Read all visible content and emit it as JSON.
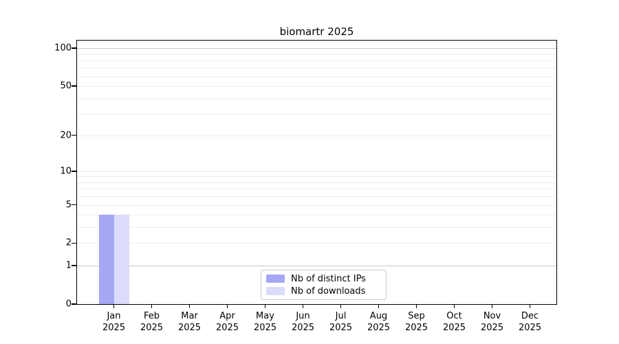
{
  "chart_data": {
    "type": "bar",
    "title": "biomartr 2025",
    "categories": [
      "Jan",
      "Feb",
      "Mar",
      "Apr",
      "May",
      "Jun",
      "Jul",
      "Aug",
      "Sep",
      "Oct",
      "Nov",
      "Dec"
    ],
    "category_year": "2025",
    "series": [
      {
        "name": "Nb of distinct IPs",
        "color": "#a6a7f4",
        "values": [
          4,
          0,
          0,
          0,
          0,
          0,
          0,
          0,
          0,
          0,
          0,
          0
        ]
      },
      {
        "name": "Nb of downloads",
        "color": "#dadcfa",
        "values": [
          4,
          0,
          0,
          0,
          0,
          0,
          0,
          0,
          0,
          0,
          0,
          0
        ]
      }
    ],
    "yscale": "log1p",
    "ylim": [
      0,
      109
    ],
    "yticks": [
      0,
      1,
      2,
      5,
      10,
      20,
      50,
      100
    ],
    "gridlines_minor": [
      2,
      3,
      4,
      5,
      6,
      7,
      8,
      9,
      10,
      20,
      30,
      40,
      50,
      60,
      70,
      80,
      90
    ],
    "gridlines_major": [
      1,
      100
    ],
    "grid": true,
    "legend_position": "bottom-center",
    "xlabel": "",
    "ylabel": ""
  },
  "colors": {
    "bar_distinct_ips": "#a6a7f4",
    "bar_downloads": "#dadcfa",
    "grid_minor": "#ededed",
    "grid_major": "#c8c8c8",
    "spine": "#000000",
    "legend_border": "#cccccc",
    "text": "#000000",
    "background": "#ffffff"
  }
}
